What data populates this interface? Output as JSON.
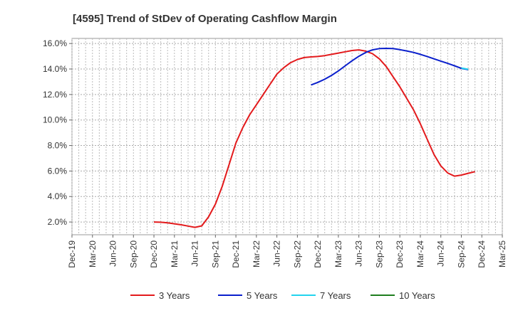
{
  "chart_data": {
    "type": "line",
    "title": "[4595]  Trend of StDev of Operating Cashflow Margin",
    "xlabel": "",
    "ylabel": "",
    "x_ticks": [
      "Dec-19",
      "Mar-20",
      "Jun-20",
      "Sep-20",
      "Dec-20",
      "Mar-21",
      "Jun-21",
      "Sep-21",
      "Dec-21",
      "Mar-22",
      "Jun-22",
      "Sep-22",
      "Dec-22",
      "Mar-23",
      "Jun-23",
      "Sep-23",
      "Dec-23",
      "Mar-24",
      "Jun-24",
      "Sep-24",
      "Dec-24",
      "Mar-25"
    ],
    "y_ticks": [
      "2.0%",
      "4.0%",
      "6.0%",
      "8.0%",
      "10.0%",
      "12.0%",
      "14.0%",
      "16.0%"
    ],
    "y_tick_values": [
      2,
      4,
      6,
      8,
      10,
      12,
      14,
      16
    ],
    "ylim": [
      1.0,
      16.4
    ],
    "grid": true,
    "legend_position": "bottom",
    "series": [
      {
        "name": "3 Years",
        "color": "#e31a1c",
        "points": [
          [
            "Dec-20",
            2.0
          ],
          [
            "Jan-21",
            1.98
          ],
          [
            "Feb-21",
            1.93
          ],
          [
            "Mar-21",
            1.86
          ],
          [
            "Apr-21",
            1.78
          ],
          [
            "May-21",
            1.68
          ],
          [
            "Jun-21",
            1.58
          ],
          [
            "Jul-21",
            1.7
          ],
          [
            "Aug-21",
            2.4
          ],
          [
            "Sep-21",
            3.4
          ],
          [
            "Oct-21",
            4.8
          ],
          [
            "Nov-21",
            6.5
          ],
          [
            "Dec-21",
            8.2
          ],
          [
            "Jan-22",
            9.4
          ],
          [
            "Feb-22",
            10.4
          ],
          [
            "Mar-22",
            11.2
          ],
          [
            "Apr-22",
            12.0
          ],
          [
            "May-22",
            12.8
          ],
          [
            "Jun-22",
            13.6
          ],
          [
            "Jul-22",
            14.1
          ],
          [
            "Aug-22",
            14.5
          ],
          [
            "Sep-22",
            14.75
          ],
          [
            "Oct-22",
            14.9
          ],
          [
            "Nov-22",
            14.95
          ],
          [
            "Dec-22",
            14.98
          ],
          [
            "Jan-23",
            15.05
          ],
          [
            "Feb-23",
            15.15
          ],
          [
            "Mar-23",
            15.25
          ],
          [
            "Apr-23",
            15.35
          ],
          [
            "May-23",
            15.45
          ],
          [
            "Jun-23",
            15.5
          ],
          [
            "Jul-23",
            15.4
          ],
          [
            "Aug-23",
            15.2
          ],
          [
            "Sep-23",
            14.8
          ],
          [
            "Oct-23",
            14.2
          ],
          [
            "Nov-23",
            13.4
          ],
          [
            "Dec-23",
            12.6
          ],
          [
            "Jan-24",
            11.7
          ],
          [
            "Feb-24",
            10.8
          ],
          [
            "Mar-24",
            9.7
          ],
          [
            "Apr-24",
            8.5
          ],
          [
            "May-24",
            7.3
          ],
          [
            "Jun-24",
            6.4
          ],
          [
            "Jul-24",
            5.85
          ],
          [
            "Aug-24",
            5.6
          ],
          [
            "Sep-24",
            5.68
          ],
          [
            "Oct-24",
            5.82
          ],
          [
            "Nov-24",
            5.95
          ]
        ]
      },
      {
        "name": "5 Years",
        "color": "#0a1fcc",
        "points": [
          [
            "Nov-22",
            12.75
          ],
          [
            "Dec-22",
            12.95
          ],
          [
            "Jan-23",
            13.2
          ],
          [
            "Feb-23",
            13.5
          ],
          [
            "Mar-23",
            13.85
          ],
          [
            "Apr-23",
            14.25
          ],
          [
            "May-23",
            14.65
          ],
          [
            "Jun-23",
            15.0
          ],
          [
            "Jul-23",
            15.3
          ],
          [
            "Aug-23",
            15.5
          ],
          [
            "Sep-23",
            15.6
          ],
          [
            "Oct-23",
            15.62
          ],
          [
            "Nov-23",
            15.6
          ],
          [
            "Dec-23",
            15.52
          ],
          [
            "Jan-24",
            15.42
          ],
          [
            "Feb-24",
            15.3
          ],
          [
            "Mar-24",
            15.15
          ],
          [
            "Apr-24",
            14.98
          ],
          [
            "May-24",
            14.8
          ],
          [
            "Jun-24",
            14.62
          ],
          [
            "Jul-24",
            14.44
          ],
          [
            "Aug-24",
            14.25
          ],
          [
            "Sep-24",
            14.05
          ],
          [
            "Oct-24",
            13.95
          ]
        ]
      },
      {
        "name": "7 Years",
        "color": "#22d3ee",
        "points": [
          [
            "Sep-24",
            14.08
          ],
          [
            "Oct-24",
            13.98
          ]
        ]
      },
      {
        "name": "10 Years",
        "color": "#1e7d1e",
        "points": []
      }
    ]
  }
}
